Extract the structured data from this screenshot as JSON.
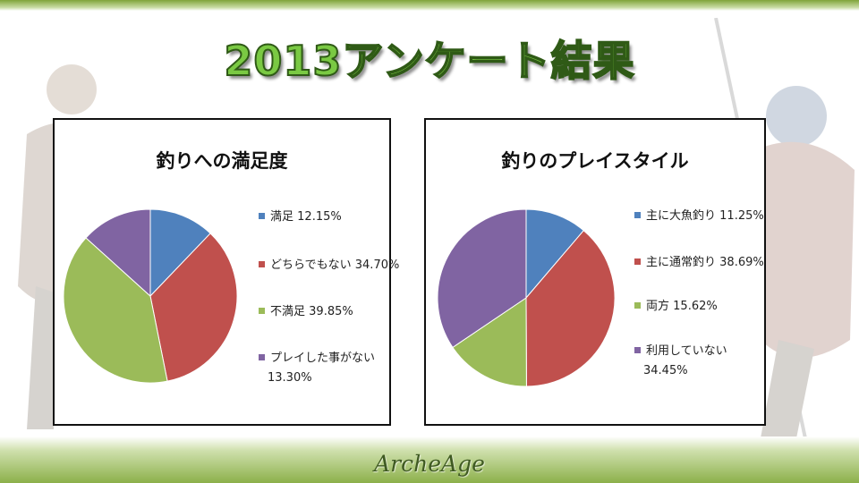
{
  "title": "2013アンケート結果",
  "brand": "ArcheAge",
  "chart_data": [
    {
      "type": "pie",
      "title": "釣りへの満足度",
      "slices": [
        {
          "label": "満足",
          "value": 12.15,
          "display": "12.15%",
          "color": "#4f81bd"
        },
        {
          "label": "どちらでもない",
          "value": 34.7,
          "display": "34.70%",
          "color": "#c0504d"
        },
        {
          "label": "不満足",
          "value": 39.85,
          "display": "39.85%",
          "color": "#9bbb59"
        },
        {
          "label": "プレイした事がない",
          "value": 13.3,
          "display": "13.30%",
          "color": "#8064a2"
        }
      ],
      "legend": "right"
    },
    {
      "type": "pie",
      "title": "釣りのプレイスタイル",
      "slices": [
        {
          "label": "主に大魚釣り",
          "value": 11.25,
          "display": "11.25%",
          "color": "#4f81bd"
        },
        {
          "label": "主に通常釣り",
          "value": 38.69,
          "display": "38.69%",
          "color": "#c0504d"
        },
        {
          "label": "両方",
          "value": 15.62,
          "display": "15.62%",
          "color": "#9bbb59"
        },
        {
          "label": "利用していない",
          "value": 34.45,
          "display": "34.45%",
          "color": "#8064a2"
        }
      ],
      "legend": "right"
    }
  ]
}
